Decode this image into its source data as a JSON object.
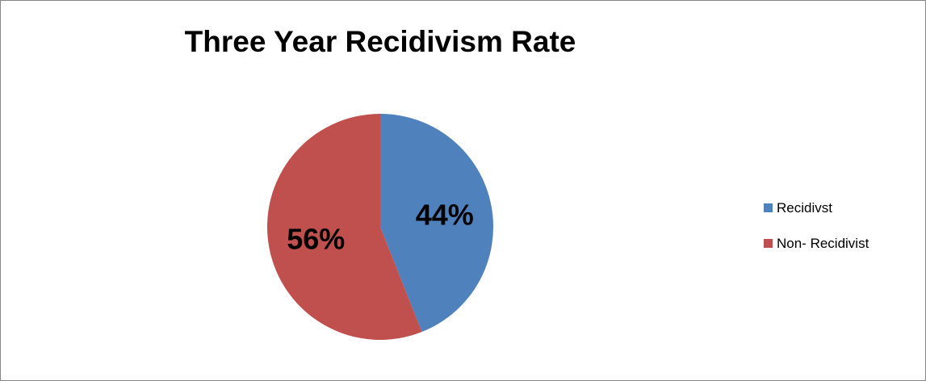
{
  "chart_data": {
    "type": "pie",
    "title": "Three Year Recidivism Rate",
    "slices": [
      {
        "label": "Recidivst",
        "value": 44,
        "display": "44%",
        "color": "#4f81bd"
      },
      {
        "label": "Non- Recidivist",
        "value": 56,
        "display": "56%",
        "color": "#c0504d"
      }
    ],
    "legend_position": "right",
    "start_angle_deg": 0,
    "direction": "clockwise"
  }
}
